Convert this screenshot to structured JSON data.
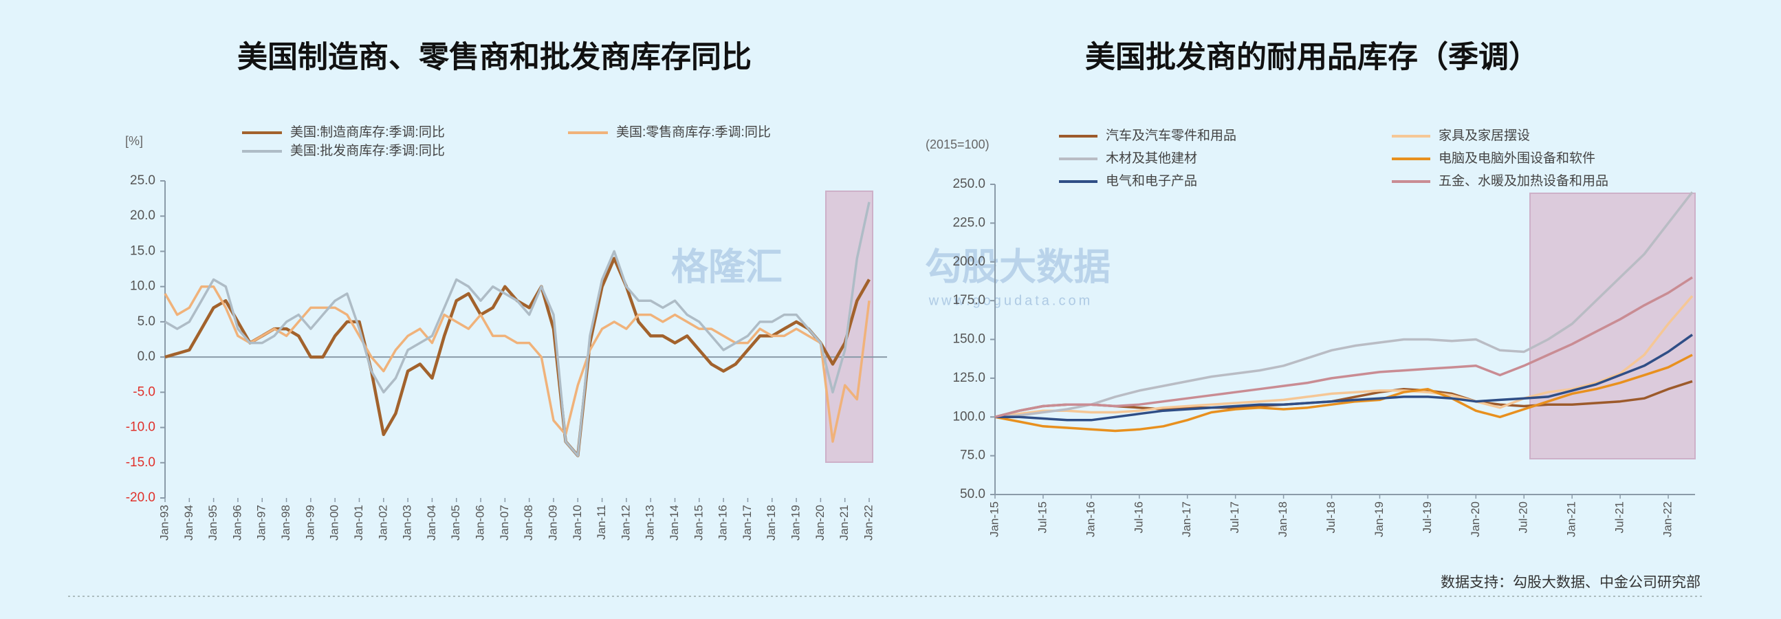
{
  "chart_data": [
    {
      "type": "line",
      "title": "美国制造商、零售商和批发商库存同比",
      "ylabel": "[%]",
      "categories": [
        "Jan-93",
        null,
        "Jan-94",
        null,
        "Jan-95",
        null,
        "Jan-96",
        null,
        "Jan-97",
        null,
        "Jan-98",
        null,
        "Jan-99",
        null,
        "Jan-00",
        null,
        "Jan-01",
        null,
        "Jan-02",
        null,
        "Jan-03",
        null,
        "Jan-04",
        null,
        "Jan-05",
        null,
        "Jan-06",
        null,
        "Jan-07",
        null,
        "Jan-08",
        null,
        "Jan-09",
        null,
        "Jan-10",
        null,
        "Jan-11",
        null,
        "Jan-12",
        null,
        "Jan-13",
        null,
        "Jan-14",
        null,
        "Jan-15",
        null,
        "Jan-16",
        null,
        "Jan-17",
        null,
        "Jan-18",
        null,
        "Jan-19",
        null,
        "Jan-20",
        null,
        "Jan-21",
        null,
        "Jan-22"
      ],
      "series": [
        {
          "name": "美国:制造商库存:季调:同比",
          "color": "#a2622c",
          "values": [
            0,
            0.5,
            1,
            4,
            7,
            8,
            5,
            2,
            3,
            4,
            4,
            3,
            0,
            0,
            3,
            5,
            5,
            -2,
            -11,
            -8,
            -2,
            -1,
            -3,
            3,
            8,
            9,
            6,
            7,
            10,
            8,
            7,
            10,
            4,
            -12,
            -14,
            2,
            10,
            14,
            10,
            5,
            3,
            3,
            2,
            3,
            1,
            -1,
            -2,
            -1,
            1,
            3,
            3,
            4,
            5,
            4,
            2,
            -1,
            2,
            8,
            11
          ]
        },
        {
          "name": "美国:零售商库存:季调:同比",
          "color": "#f0b27a",
          "values": [
            9,
            6,
            7,
            10,
            10,
            7,
            3,
            2,
            3,
            4,
            3,
            5,
            7,
            7,
            7,
            6,
            3,
            0,
            -2,
            1,
            3,
            4,
            2,
            6,
            5,
            4,
            6,
            3,
            3,
            2,
            2,
            0,
            -9,
            -11,
            -4,
            1,
            4,
            5,
            4,
            6,
            6,
            5,
            6,
            5,
            4,
            4,
            3,
            2,
            2,
            4,
            3,
            3,
            4,
            3,
            2,
            -12,
            -4,
            -6,
            8
          ]
        },
        {
          "name": "美国:批发商库存:季调:同比",
          "color": "#aebcc6",
          "values": [
            5,
            4,
            5,
            8,
            11,
            10,
            4,
            2,
            2,
            3,
            5,
            6,
            4,
            6,
            8,
            9,
            4,
            -2,
            -5,
            -3,
            1,
            2,
            3,
            7,
            11,
            10,
            8,
            10,
            9,
            8,
            6,
            10,
            6,
            -12,
            -14,
            3,
            11,
            15,
            10,
            8,
            8,
            7,
            8,
            6,
            5,
            3,
            1,
            2,
            3,
            5,
            5,
            6,
            6,
            4,
            2,
            -5,
            1,
            14,
            22
          ]
        }
      ],
      "ylim": [
        -20,
        25
      ],
      "yticks": [
        {
          "value": 25,
          "label": "25.0"
        },
        {
          "value": 20,
          "label": "20.0"
        },
        {
          "value": 15,
          "label": "15.0"
        },
        {
          "value": 10,
          "label": "10.0"
        },
        {
          "value": 5,
          "label": "5.0"
        },
        {
          "value": 0,
          "label": "0.0"
        },
        {
          "value": -5,
          "label": "-5.0"
        },
        {
          "value": -10,
          "label": "-10.0"
        },
        {
          "value": -15,
          "label": "-15.0"
        },
        {
          "value": -20,
          "label": "-20.0"
        }
      ],
      "grid": false
    },
    {
      "type": "line",
      "title": "美国批发商的耐用品库存（季调）",
      "ylabel": "(2015=100)",
      "note": "数据支持：勾股大数据、中金公司研究部",
      "categories": [
        "Jan-15",
        null,
        "Jul-15",
        null,
        "Jan-16",
        null,
        "Jul-16",
        null,
        "Jan-17",
        null,
        "Jul-17",
        null,
        "Jan-18",
        null,
        "Jul-18",
        null,
        "Jan-19",
        null,
        "Jul-19",
        null,
        "Jan-20",
        null,
        "Jul-20",
        null,
        "Jan-21",
        null,
        "Jul-21",
        null,
        "Jan-22",
        null
      ],
      "series": [
        {
          "name": "汽车及汽车零件和用品",
          "color": "#9c5a2b",
          "values": [
            100,
            104,
            107,
            108,
            108,
            107,
            106,
            105,
            106,
            106,
            106,
            107,
            108,
            109,
            110,
            113,
            116,
            118,
            117,
            115,
            110,
            108,
            107,
            108,
            108,
            109,
            110,
            112,
            118,
            123
          ]
        },
        {
          "name": "家具及家居摆设",
          "color": "#f5c796",
          "values": [
            100,
            102,
            104,
            104,
            103,
            103,
            104,
            106,
            107,
            108,
            109,
            110,
            111,
            113,
            115,
            116,
            117,
            117,
            116,
            114,
            110,
            106,
            112,
            116,
            118,
            122,
            128,
            140,
            160,
            178
          ]
        },
        {
          "name": "木材及其他建材",
          "color": "#b9bcc4",
          "values": [
            100,
            101,
            103,
            105,
            108,
            113,
            117,
            120,
            123,
            126,
            128,
            130,
            133,
            138,
            143,
            146,
            148,
            150,
            150,
            149,
            150,
            143,
            142,
            150,
            160,
            175,
            190,
            205,
            225,
            245
          ]
        },
        {
          "name": "电脑及电脑外围设备和软件",
          "color": "#e8901e",
          "values": [
            100,
            97,
            94,
            93,
            92,
            91,
            92,
            94,
            98,
            103,
            105,
            106,
            105,
            106,
            108,
            110,
            111,
            116,
            118,
            112,
            104,
            100,
            105,
            110,
            115,
            118,
            122,
            127,
            132,
            140
          ]
        },
        {
          "name": "电气和电子产品",
          "color": "#2f4e86",
          "values": [
            100,
            100,
            99,
            98,
            98,
            100,
            102,
            104,
            105,
            106,
            107,
            108,
            108,
            109,
            110,
            111,
            112,
            113,
            113,
            112,
            110,
            111,
            112,
            113,
            117,
            121,
            127,
            133,
            142,
            153
          ]
        },
        {
          "name": "五金、水暖及加热设备和用品",
          "color": "#c98c93",
          "values": [
            100,
            104,
            107,
            108,
            108,
            107,
            108,
            110,
            112,
            114,
            116,
            118,
            120,
            122,
            125,
            127,
            129,
            130,
            131,
            132,
            133,
            127,
            133,
            140,
            147,
            155,
            163,
            172,
            180,
            190
          ]
        }
      ],
      "ylim": [
        50,
        250
      ],
      "yticks": [
        {
          "value": 250,
          "label": "250.0"
        },
        {
          "value": 225,
          "label": "225.0"
        },
        {
          "value": 200,
          "label": "200.0"
        },
        {
          "value": 175,
          "label": "175.0"
        },
        {
          "value": 150,
          "label": "150.0"
        },
        {
          "value": 125,
          "label": "125.0"
        },
        {
          "value": 100,
          "label": "100.0"
        },
        {
          "value": 75,
          "label": "75.0"
        },
        {
          "value": 50,
          "label": "50.0"
        }
      ],
      "grid": false
    }
  ],
  "watermark": {
    "logo": "格隆汇",
    "brand": "勾股大数据",
    "url": "www.gogudata.com"
  }
}
